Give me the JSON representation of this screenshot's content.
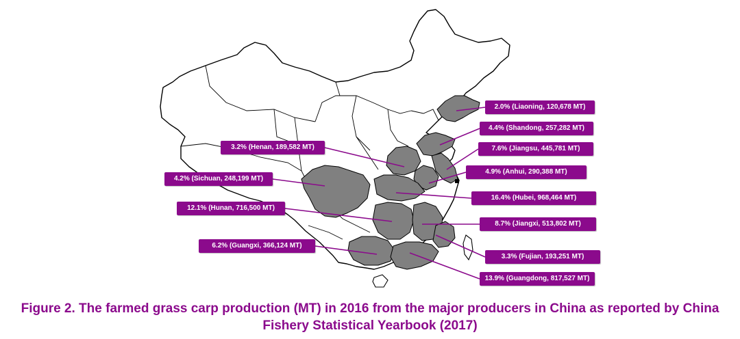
{
  "colors": {
    "accent": "#8b0a8c",
    "province_fill": "#808080",
    "map_stroke": "#000000",
    "label_text": "#ffffff"
  },
  "map": {
    "provinces": [
      {
        "name": "Liaoning",
        "percent": "2.0%",
        "production_mt": 120678,
        "label": "2.0% (Liaoning, 120,678 MT)"
      },
      {
        "name": "Shandong",
        "percent": "4.4%",
        "production_mt": 257282,
        "label": "4.4% (Shandong, 257,282 MT)"
      },
      {
        "name": "Henan",
        "percent": "3.2%",
        "production_mt": 189582,
        "label": "3.2% (Henan, 189,582 MT)"
      },
      {
        "name": "Jiangsu",
        "percent": "7.6%",
        "production_mt": 445781,
        "label": "7.6% (Jiangsu, 445,781 MT)"
      },
      {
        "name": "Sichuan",
        "percent": "4.2%",
        "production_mt": 248199,
        "label": "4.2% (Sichuan, 248,199 MT)"
      },
      {
        "name": "Anhui",
        "percent": "4.9%",
        "production_mt": 290388,
        "label": "4.9% (Anhui, 290,388 MT)"
      },
      {
        "name": "Hubei",
        "percent": "16.4%",
        "production_mt": 968464,
        "label": "16.4% (Hubei, 968,464 MT)"
      },
      {
        "name": "Hunan",
        "percent": "12.1%",
        "production_mt": 716500,
        "label": "12.1% (Hunan, 716,500 MT)"
      },
      {
        "name": "Jiangxi",
        "percent": "8.7%",
        "production_mt": 513802,
        "label": "8.7% (Jiangxi, 513,802 MT)"
      },
      {
        "name": "Guangxi",
        "percent": "6.2%",
        "production_mt": 366124,
        "label": "6.2% (Guangxi, 366,124 MT)"
      },
      {
        "name": "Fujian",
        "percent": "3.3%",
        "production_mt": 193251,
        "label": "3.3% (Fujian, 193,251 MT)"
      },
      {
        "name": "Guangdong",
        "percent": "13.9%",
        "production_mt": 817527,
        "label": "13.9% (Guangdong, 817,527 MT)"
      }
    ]
  },
  "caption": {
    "text": "Figure 2. The farmed grass carp production (MT) in 2016 from the major producers in China as reported by China Fishery Statistical Yearbook (2017)"
  }
}
